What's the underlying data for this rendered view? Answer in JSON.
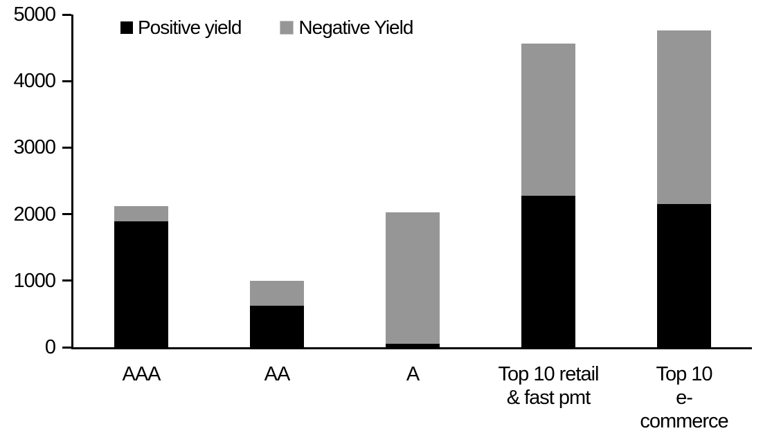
{
  "chart_data": {
    "type": "bar",
    "stacked": true,
    "title": "",
    "xlabel": "",
    "ylabel": "",
    "categories": [
      "AAA",
      "AA",
      "A",
      "Top 10 retail\n& fast pmt",
      "Top 10\ne-commerce"
    ],
    "series": [
      {
        "name": "Positive yield",
        "color": "#000000",
        "values": [
          1890,
          620,
          50,
          2280,
          2150
        ]
      },
      {
        "name": "Negative Yield",
        "color": "#969696",
        "values": [
          230,
          380,
          1980,
          2280,
          2610
        ]
      }
    ],
    "totals": [
      2120,
      1000,
      2030,
      4560,
      4760
    ],
    "ylim": [
      0,
      5000
    ],
    "yticks": [
      0,
      1000,
      2000,
      3000,
      4000,
      5000
    ],
    "grid": false,
    "legend_position": "top-left-inside",
    "axis_color": "#000000",
    "background": "#ffffff"
  }
}
